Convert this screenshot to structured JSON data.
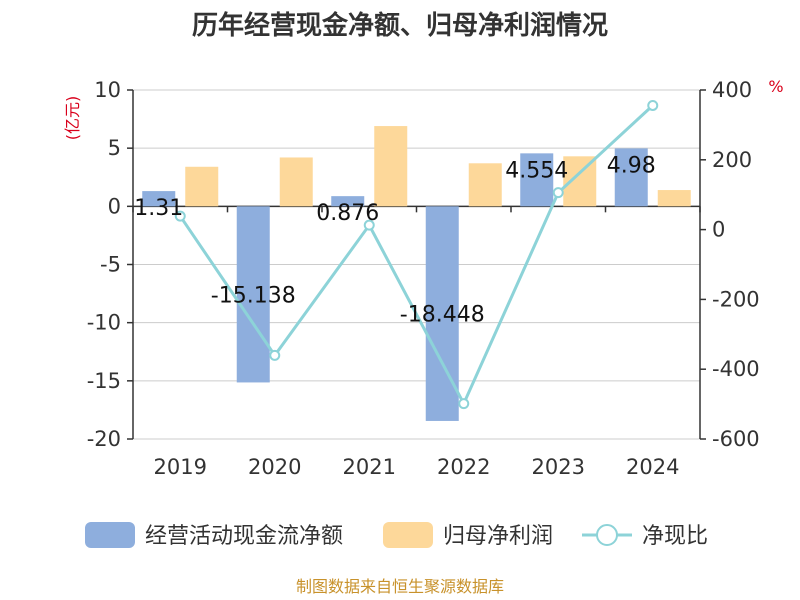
{
  "chart_data": {
    "type": "bar",
    "title": "历年经营现金净额、归母净利润情况",
    "categories": [
      "2019",
      "2020",
      "2021",
      "2022",
      "2023",
      "2024"
    ],
    "y_left": {
      "unit": "(亿元)",
      "ylim": [
        -20,
        10
      ],
      "ticks": [
        10,
        5,
        0,
        -5,
        -10,
        -15,
        -20
      ]
    },
    "y_right": {
      "unit": "%",
      "ylim": [
        -600,
        400
      ],
      "ticks": [
        400,
        200,
        0,
        -200,
        -400,
        -600
      ]
    },
    "series": [
      {
        "name": "经营活动现金流净额",
        "type": "bar",
        "axis": "left",
        "color": "#8eaedd",
        "values": [
          1.31,
          -15.138,
          0.876,
          -18.448,
          4.554,
          4.98
        ],
        "labels": [
          "1.31",
          "-15.138",
          "0.876",
          "-18.448",
          "4.554",
          "4.98"
        ]
      },
      {
        "name": "归母净利润",
        "type": "bar",
        "axis": "left",
        "color": "#fdd89a",
        "values": [
          3.4,
          4.2,
          6.9,
          3.7,
          4.3,
          1.4
        ]
      },
      {
        "name": "净现比",
        "type": "line",
        "axis": "right",
        "color": "#8dd3d8",
        "values": [
          38.5,
          -360.4,
          12.7,
          -498.6,
          105.9,
          355.7
        ]
      }
    ],
    "legend_position": "bottom",
    "grid": true
  },
  "footer": {
    "source": "制图数据来自恒生聚源数据库"
  }
}
